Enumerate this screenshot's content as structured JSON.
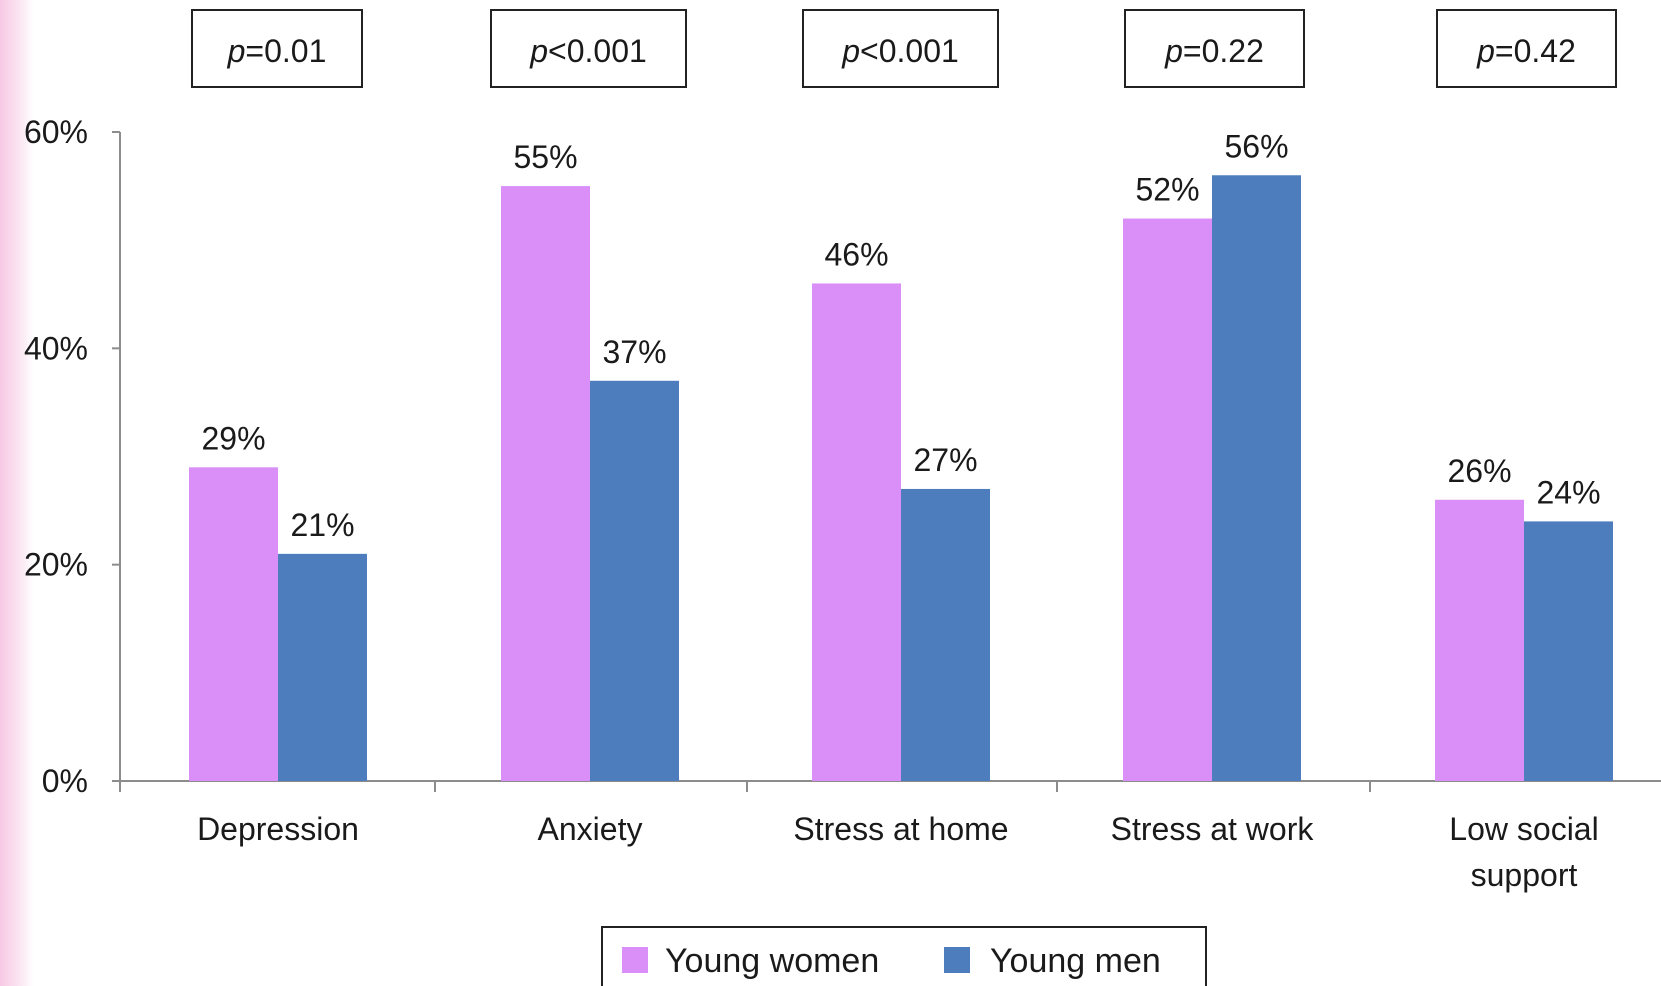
{
  "colors": {
    "young_women": "#d98ff7",
    "young_men": "#4d7dbd",
    "axis": "#8c8c8c",
    "box_border": "#222222"
  },
  "chart_data": {
    "type": "bar",
    "categories": [
      [
        "Depression"
      ],
      [
        "Anxiety"
      ],
      [
        "Stress at home"
      ],
      [
        "Stress at work"
      ],
      [
        "Low social",
        "support"
      ]
    ],
    "series": [
      {
        "name": "Young women",
        "values": [
          29,
          55,
          46,
          52,
          26
        ],
        "labels": [
          "29%",
          "55%",
          "46%",
          "52%",
          "26%"
        ]
      },
      {
        "name": "Young men",
        "values": [
          21,
          37,
          27,
          56,
          24
        ],
        "labels": [
          "21%",
          "37%",
          "27%",
          "56%",
          "24%"
        ]
      }
    ],
    "p_values": [
      {
        "prefix": "p",
        "rest": "=0.01"
      },
      {
        "prefix": "p",
        "rest": "<0.001"
      },
      {
        "prefix": "p",
        "rest": "<0.001"
      },
      {
        "prefix": "p",
        "rest": "=0.22"
      },
      {
        "prefix": "p",
        "rest": "=0.42"
      }
    ],
    "y_ticks": [
      "0%",
      "20%",
      "40%",
      "60%"
    ],
    "y_tick_values": [
      0,
      20,
      40,
      60
    ],
    "ylim": [
      0,
      60
    ],
    "legend": {
      "position": "bottom"
    },
    "grid": false
  }
}
